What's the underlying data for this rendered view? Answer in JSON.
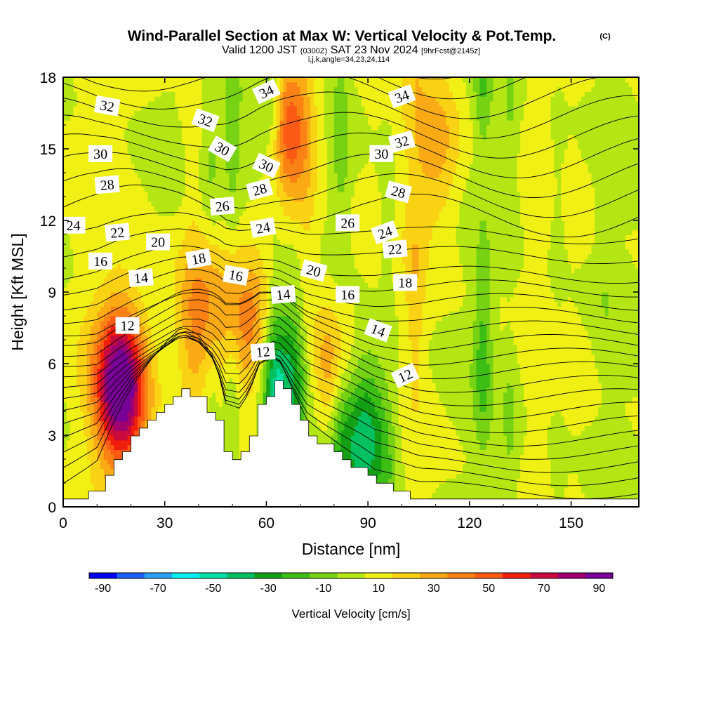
{
  "title": {
    "main": "Wind-Parallel Section at Max W: Vertical Velocity & Pot.Temp.",
    "copyright": "(C)",
    "valid_prefix": "Valid 1200 JST",
    "valid_utc": "(0300Z)",
    "valid_date": "SAT 23 Nov 2024",
    "forecast": "[9hrFcst@2145z]",
    "indices": "i,j,k,angle=34,23,24,114"
  },
  "colorbar": {
    "label": "Vertical Velocity [cm/s]",
    "ticks": [
      "-90",
      "-70",
      "-50",
      "-30",
      "-10",
      "10",
      "30",
      "50",
      "70",
      "90"
    ],
    "colors": [
      "#0000f5",
      "#1e5ef5",
      "#2aa0f5",
      "#00f0f0",
      "#00e0a8",
      "#00c060",
      "#14a014",
      "#3cbe14",
      "#78d214",
      "#b4e614",
      "#f0f014",
      "#fad214",
      "#faaa14",
      "#fa8214",
      "#fa5a14",
      "#f01e0a",
      "#c80a3c",
      "#a0006e",
      "#780096"
    ],
    "min": -95,
    "max": 95,
    "step": 10
  },
  "contour_labels": [
    "34",
    "32",
    "30",
    "28",
    "26",
    "24",
    "22",
    "20",
    "18",
    "16",
    "14",
    "12"
  ],
  "chart_data": {
    "type": "heatmap",
    "title": "Wind-Parallel Section at Max W: Vertical Velocity & Pot.Temp.",
    "xlabel": "Distance [nm]",
    "ylabel": "Height [Kft MSL]",
    "xlim": [
      0,
      170
    ],
    "ylim": [
      0,
      18
    ],
    "xticks": [
      "0",
      "30",
      "60",
      "90",
      "120",
      "150"
    ],
    "yticks": [
      "0",
      "3",
      "6",
      "9",
      "12",
      "15",
      "18"
    ],
    "field": "Vertical Velocity [cm/s]",
    "contour_field": "Potential temperature",
    "terrain_top_kft": [
      [
        0,
        0.3
      ],
      [
        10,
        0.6
      ],
      [
        15,
        1.9
      ],
      [
        20,
        2.9
      ],
      [
        25,
        3.6
      ],
      [
        35,
        4.8
      ],
      [
        40,
        4.5
      ],
      [
        45,
        3.6
      ],
      [
        48,
        2.0
      ],
      [
        52,
        2.1
      ],
      [
        55,
        3.0
      ],
      [
        58,
        4.5
      ],
      [
        63,
        5.2
      ],
      [
        65,
        4.8
      ],
      [
        68,
        4.0
      ],
      [
        72,
        3.0
      ],
      [
        80,
        2.3
      ],
      [
        87,
        1.6
      ],
      [
        92,
        1.0
      ],
      [
        98,
        0.7
      ],
      [
        105,
        0.3
      ],
      [
        170,
        0.3
      ]
    ],
    "contour_levels": [
      12,
      14,
      16,
      18,
      20,
      22,
      24,
      26,
      28,
      30,
      32,
      34
    ],
    "velocity_features": [
      {
        "x": 17,
        "y_kft": 5.0,
        "value": 95
      },
      {
        "x": 40,
        "y_kft": 8.0,
        "value": 35
      },
      {
        "x": 55,
        "y_kft": 7.5,
        "value": 30
      },
      {
        "x": 66,
        "y_kft": 5.5,
        "value": -50
      },
      {
        "x": 60,
        "y_kft": 16.0,
        "value": -30
      },
      {
        "x": 66,
        "y_kft": 16.0,
        "value": 60
      },
      {
        "x": 78,
        "y_kft": 6.0,
        "value": 30
      },
      {
        "x": 89,
        "y_kft": 3.0,
        "value": -50
      },
      {
        "x": 110,
        "y_kft": 15.0,
        "value": 25
      }
    ]
  }
}
